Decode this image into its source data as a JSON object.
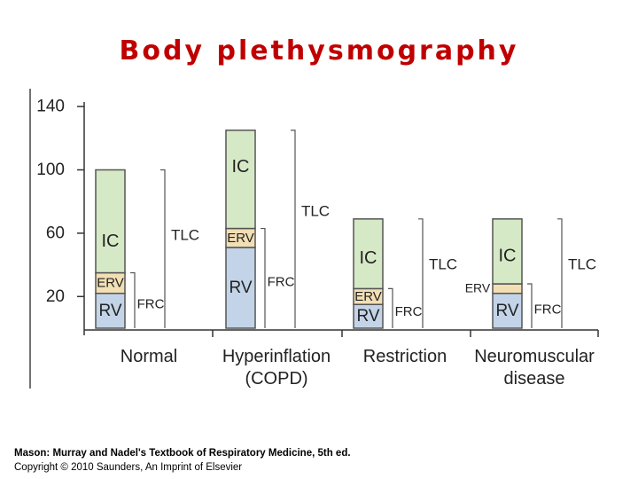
{
  "slide": {
    "title": "Body plethysmography",
    "citation_line1": "Mason: Murray and Nadel's Textbook of Respiratory Medicine, 5th ed.",
    "citation_line2": "Copyright © 2010 Saunders, An Imprint of Elsevier"
  },
  "colors": {
    "title": "#c00000",
    "IC": "#d6e9c6",
    "ERV": "#f2dfb4",
    "RV": "#c3d4e8",
    "outline": "#555555"
  },
  "chart_data": {
    "type": "bar",
    "stacked": true,
    "ylim": [
      0,
      140
    ],
    "yticks": [
      20,
      60,
      100,
      140
    ],
    "categories": [
      {
        "label_lines": [
          "Normal"
        ],
        "RV": 22,
        "ERV": 13,
        "IC": 65,
        "TLC": 100,
        "FRC": 35,
        "erv_label": "inside"
      },
      {
        "label_lines": [
          "Hyperinflation",
          "(COPD)"
        ],
        "RV": 51,
        "ERV": 12,
        "IC": 62,
        "TLC": 125,
        "FRC": 63,
        "erv_label": "inside"
      },
      {
        "label_lines": [
          "Restriction"
        ],
        "RV": 15,
        "ERV": 10,
        "IC": 44,
        "TLC": 69,
        "FRC": 25,
        "erv_label": "inside"
      },
      {
        "label_lines": [
          "Neuromuscular",
          "disease"
        ],
        "RV": 22,
        "ERV": 6,
        "IC": 41,
        "TLC": 69,
        "FRC": 28,
        "erv_label": "outside"
      }
    ],
    "segment_labels": {
      "RV": "RV",
      "ERV": "ERV",
      "IC": "IC"
    },
    "bracket_labels": {
      "FRC": "FRC",
      "TLC": "TLC"
    }
  }
}
